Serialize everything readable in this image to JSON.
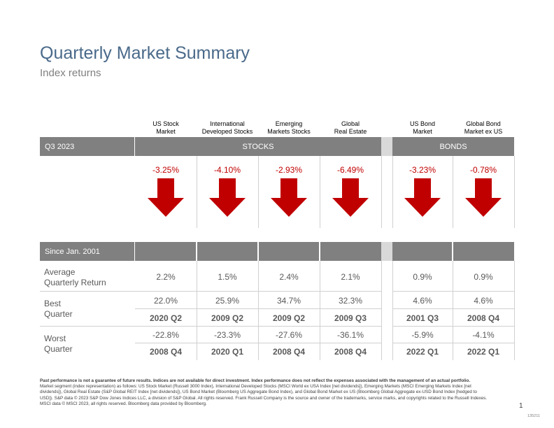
{
  "title": "Quarterly Market Summary",
  "subtitle": "Index returns",
  "columns": [
    {
      "line1": "US Stock",
      "line2": "Market",
      "return": "-3.25%",
      "avg": "2.2%",
      "best": "22.0%",
      "best_q": "2020 Q2",
      "worst": "-22.8%",
      "worst_q": "2008 Q4"
    },
    {
      "line1": "International",
      "line2": "Developed Stocks",
      "return": "-4.10%",
      "avg": "1.5%",
      "best": "25.9%",
      "best_q": "2009 Q2",
      "worst": "-23.3%",
      "worst_q": "2020 Q1"
    },
    {
      "line1": "Emerging",
      "line2": "Markets Stocks",
      "return": "-2.93%",
      "avg": "2.4%",
      "best": "34.7%",
      "best_q": "2009 Q2",
      "worst": "-27.6%",
      "worst_q": "2008 Q4"
    },
    {
      "line1": "Global",
      "line2": "Real Estate",
      "return": "-6.49%",
      "avg": "2.1%",
      "best": "32.3%",
      "best_q": "2009 Q3",
      "worst": "-36.1%",
      "worst_q": "2008 Q4"
    },
    {
      "line1": "US Bond",
      "line2": "Market",
      "return": "-3.23%",
      "avg": "0.9%",
      "best": "4.6%",
      "best_q": "2001 Q3",
      "worst": "-5.9%",
      "worst_q": "2022 Q1"
    },
    {
      "line1": "Global Bond",
      "line2": "Market ex US",
      "return": "-0.78%",
      "avg": "0.9%",
      "best": "4.6%",
      "best_q": "2008 Q4",
      "worst": "-4.1%",
      "worst_q": "2022 Q1"
    }
  ],
  "quarter_label": "Q3 2023",
  "stocks_label": "STOCKS",
  "bonds_label": "BONDS",
  "since_label": "Since Jan. 2001",
  "row_avg": {
    "line1": "Average",
    "line2": "Quarterly Return"
  },
  "row_best": {
    "line1": "Best",
    "line2": "Quarter"
  },
  "row_worst": {
    "line1": "Worst",
    "line2": "Quarter"
  },
  "arrow_color": "#c00000",
  "footnote_bold": "Past performance is not a guarantee of future results. Indices are not available for direct investment. Index performance does not reflect the expenses associated with the management of an actual portfolio.",
  "footnote": "Market segment (index representation) as follows: US Stock Market (Russell 3000 Index), International Developed Stocks (MSCI World ex USA Index [net dividends]), Emerging Markets (MSCI Emerging Markets Index [net dividends]), Global Real Estate (S&P Global REIT Index [net dividends]), US Bond Market (Bloomberg US Aggregate Bond Index), and Global Bond Market ex US (Bloomberg Global Aggregate ex-USD Bond Index [hedged to USD]). S&P data © 2023 S&P Dow Jones Indices LLC, a division of S&P Global. All rights reserved. Frank Russell Company is the source and owner of the trademarks, service marks, and copyrights related to the Russell Indexes. MSCI data © MSCI 2023, all rights reserved. Bloomberg data provided by Bloomberg.",
  "page_number": "1",
  "doc_code": "135211"
}
